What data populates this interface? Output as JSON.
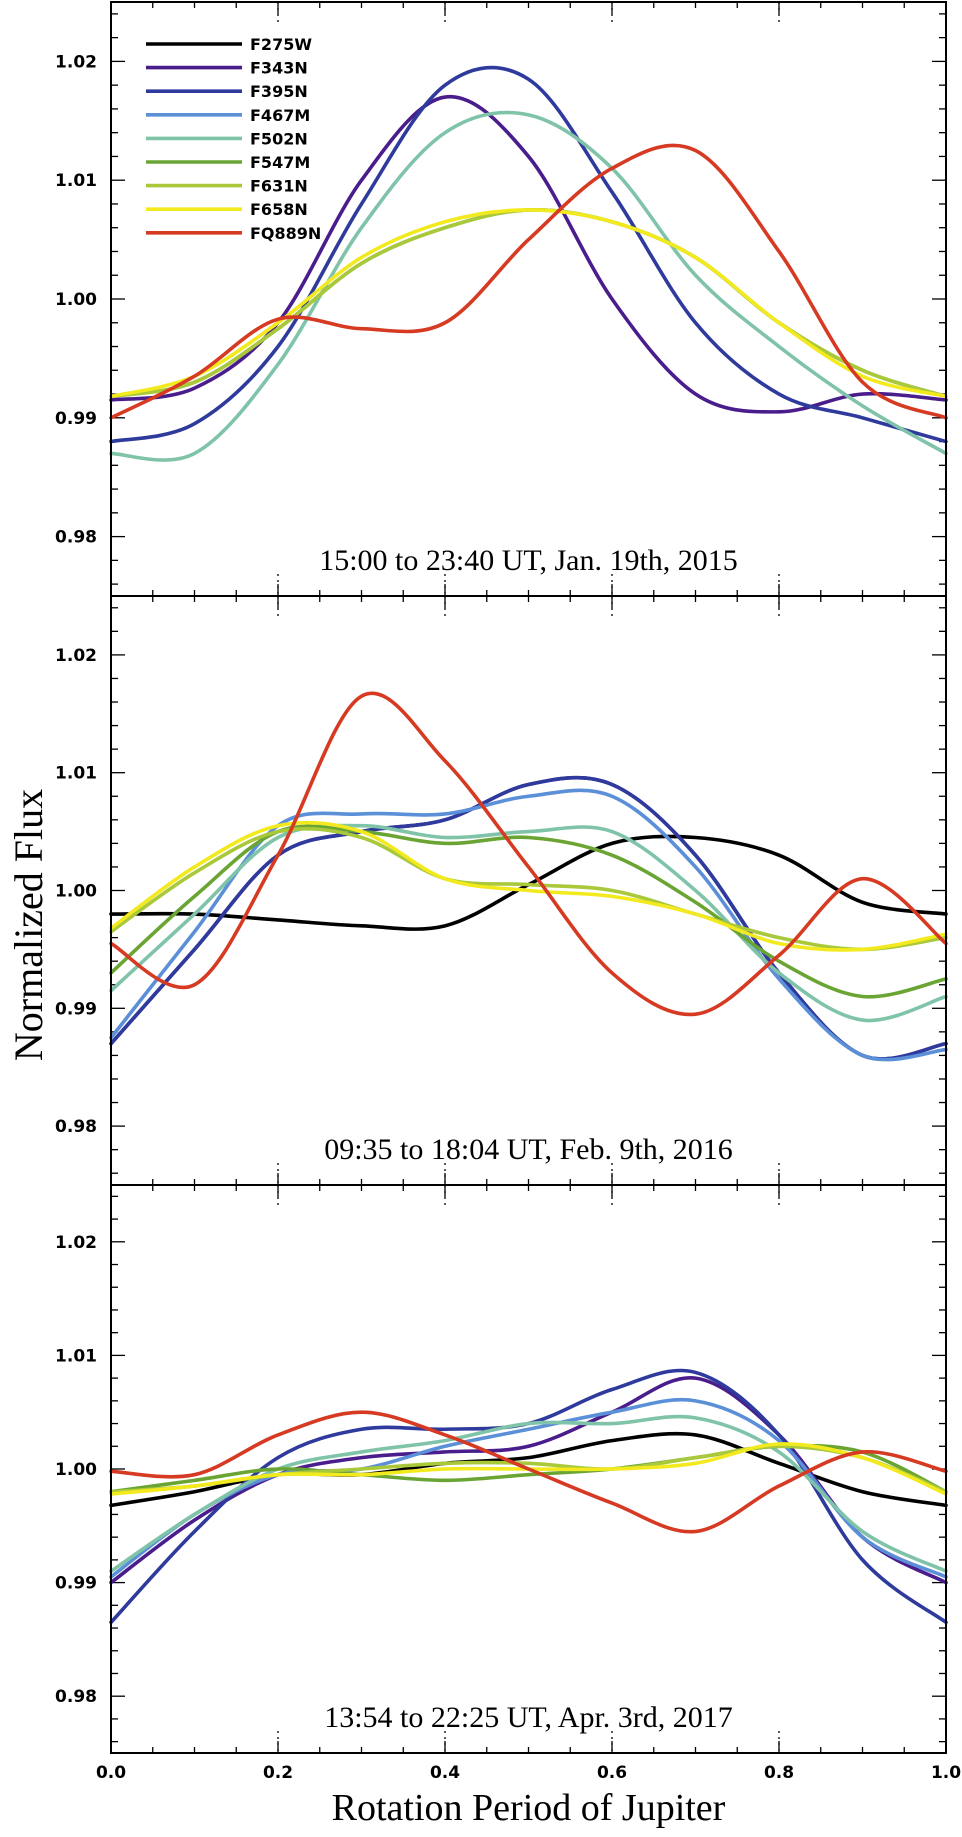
{
  "chart_data": {
    "type": "line",
    "xlabel": "Rotation Period of Jupiter",
    "ylabel": "Normalized Flux",
    "xlim": [
      0.0,
      1.0
    ],
    "ylim": [
      0.975,
      1.025
    ],
    "x_ticks": [
      "0.0",
      "0.2",
      "0.4",
      "0.6",
      "0.8",
      "1.0"
    ],
    "y_ticks": [
      "0.98",
      "0.99",
      "1.00",
      "1.01",
      "1.02"
    ],
    "legend_position": "top-left",
    "grid": "dotted vertical lines at x = 0.2, 0.4, 0.6, 0.8 (top and bottom edges)",
    "series_styles": [
      {
        "name": "F275W",
        "color": "#000000"
      },
      {
        "name": "F343N",
        "color": "#4a1d8c"
      },
      {
        "name": "F395N",
        "color": "#2e3a9c"
      },
      {
        "name": "F467M",
        "color": "#5b8fd8"
      },
      {
        "name": "F502N",
        "color": "#7fc3a8"
      },
      {
        "name": "F547M",
        "color": "#6aa534"
      },
      {
        "name": "F631N",
        "color": "#a9c83a"
      },
      {
        "name": "F658N",
        "color": "#f2ea1e"
      },
      {
        "name": "FQ889N",
        "color": "#d63a22"
      }
    ],
    "panels": [
      {
        "annotation": "15:00 to 23:40 UT, Jan. 19th, 2015",
        "x": [
          0.0,
          0.1,
          0.2,
          0.3,
          0.4,
          0.5,
          0.6,
          0.7,
          0.8,
          0.9,
          1.0
        ],
        "series": [
          {
            "name": "F343N",
            "values": [
              0.9915,
              0.9925,
              0.998,
              1.01,
              1.017,
              1.012,
              1.0,
              0.992,
              0.9905,
              0.992,
              0.9915
            ]
          },
          {
            "name": "F395N",
            "values": [
              0.988,
              0.9895,
              0.996,
              1.008,
              1.018,
              1.0185,
              1.009,
              0.998,
              0.992,
              0.99,
              0.988
            ]
          },
          {
            "name": "F502N",
            "values": [
              0.987,
              0.987,
              0.9945,
              1.006,
              1.014,
              1.0155,
              1.011,
              1.002,
              0.996,
              0.991,
              0.987
            ]
          },
          {
            "name": "F547M",
            "values": [
              0.9918,
              0.993,
              0.9975,
              1.003,
              1.006,
              1.0075,
              1.0065,
              1.0035,
              0.998,
              0.994,
              0.9918
            ]
          },
          {
            "name": "F631N",
            "values": [
              0.9918,
              0.993,
              0.9975,
              1.003,
              1.006,
              1.0075,
              1.0065,
              1.0035,
              0.998,
              0.994,
              0.9918
            ]
          },
          {
            "name": "F658N",
            "values": [
              0.9918,
              0.9935,
              0.998,
              1.0035,
              1.0065,
              1.0075,
              1.0065,
              1.0035,
              0.998,
              0.9935,
              0.9918
            ]
          },
          {
            "name": "FQ889N",
            "values": [
              0.99,
              0.9935,
              0.9983,
              0.9975,
              0.998,
              1.005,
              1.011,
              1.0125,
              1.004,
              0.993,
              0.99
            ]
          }
        ]
      },
      {
        "annotation": "09:35 to 18:04 UT, Feb. 9th, 2016",
        "x": [
          0.0,
          0.1,
          0.2,
          0.3,
          0.4,
          0.5,
          0.6,
          0.7,
          0.8,
          0.9,
          1.0
        ],
        "series": [
          {
            "name": "F275W",
            "values": [
              0.998,
              0.998,
              0.9975,
              0.997,
              0.997,
              1.0005,
              1.004,
              1.0045,
              1.003,
              0.999,
              0.998
            ]
          },
          {
            "name": "F343N",
            "values": [
              0.987,
              0.995,
              1.003,
              1.005,
              1.006,
              1.009,
              1.009,
              1.003,
              0.993,
              0.986,
              0.987
            ]
          },
          {
            "name": "F395N",
            "values": [
              0.987,
              0.995,
              1.003,
              1.005,
              1.006,
              1.009,
              1.009,
              1.003,
              0.993,
              0.986,
              0.987
            ]
          },
          {
            "name": "F467M",
            "values": [
              0.9875,
              0.9965,
              1.0055,
              1.0065,
              1.0065,
              1.008,
              1.008,
              1.002,
              0.9925,
              0.986,
              0.9865
            ]
          },
          {
            "name": "F502N",
            "values": [
              0.9915,
              0.998,
              1.0045,
              1.0055,
              1.0045,
              1.005,
              1.005,
              1.0,
              0.993,
              0.989,
              0.991
            ]
          },
          {
            "name": "F547M",
            "values": [
              0.993,
              0.9995,
              1.005,
              1.005,
              1.004,
              1.0045,
              1.003,
              0.999,
              0.994,
              0.991,
              0.9925
            ]
          },
          {
            "name": "F631N",
            "values": [
              0.9965,
              1.0015,
              1.005,
              1.0045,
              1.001,
              1.0005,
              1.0,
              0.998,
              0.996,
              0.995,
              0.996
            ]
          },
          {
            "name": "F658N",
            "values": [
              0.9968,
              1.002,
              1.0055,
              1.005,
              1.001,
              1.0,
              0.9995,
              0.998,
              0.9955,
              0.995,
              0.9963
            ]
          },
          {
            "name": "FQ889N",
            "values": [
              0.9955,
              0.992,
              1.003,
              1.0165,
              1.011,
              1.002,
              0.993,
              0.9895,
              0.9945,
              1.001,
              0.9955
            ]
          }
        ]
      },
      {
        "annotation": "13:54 to 22:25 UT, Apr. 3rd, 2017",
        "x": [
          0.0,
          0.1,
          0.2,
          0.3,
          0.4,
          0.5,
          0.6,
          0.7,
          0.8,
          0.9,
          1.0
        ],
        "series": [
          {
            "name": "F275W",
            "values": [
              0.9968,
              0.998,
              0.9995,
              0.9995,
              1.0005,
              1.001,
              1.0025,
              1.003,
              1.0005,
              0.998,
              0.9968
            ]
          },
          {
            "name": "F343N",
            "values": [
              0.99,
              0.9955,
              0.9995,
              1.001,
              1.0015,
              1.002,
              1.005,
              1.008,
              1.003,
              0.994,
              0.99
            ]
          },
          {
            "name": "F395N",
            "values": [
              0.9865,
              0.9945,
              1.001,
              1.0035,
              1.0035,
              1.004,
              1.007,
              1.0085,
              1.003,
              0.992,
              0.9865
            ]
          },
          {
            "name": "F467M",
            "values": [
              0.9905,
              0.996,
              0.9995,
              1.0,
              1.002,
              1.0035,
              1.005,
              1.006,
              1.0025,
              0.994,
              0.9905
            ]
          },
          {
            "name": "F502N",
            "values": [
              0.991,
              0.996,
              1.0,
              1.0015,
              1.0025,
              1.004,
              1.004,
              1.0045,
              1.0015,
              0.9945,
              0.991
            ]
          },
          {
            "name": "F547M",
            "values": [
              0.998,
              0.999,
              1.0,
              0.9995,
              0.999,
              0.9995,
              1.0,
              1.001,
              1.002,
              1.0015,
              0.998
            ]
          },
          {
            "name": "F631N",
            "values": [
              0.998,
              0.9985,
              0.9995,
              1.0,
              1.0005,
              1.0005,
              1.0,
              1.001,
              1.002,
              1.001,
              0.998
            ]
          },
          {
            "name": "F658N",
            "values": [
              0.9978,
              0.9985,
              0.9995,
              0.9995,
              1.0,
              1.0,
              1.0,
              1.0005,
              1.0022,
              1.001,
              0.9978
            ]
          },
          {
            "name": "FQ889N",
            "values": [
              0.9998,
              0.9995,
              1.003,
              1.005,
              1.003,
              1.0,
              0.997,
              0.9945,
              0.9985,
              1.0015,
              0.9998
            ]
          }
        ]
      }
    ]
  }
}
